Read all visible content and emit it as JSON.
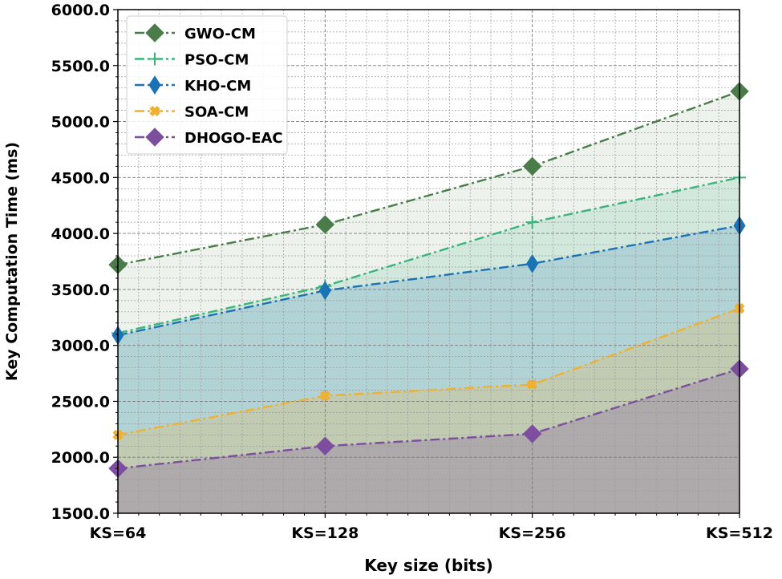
{
  "chart_data": {
    "type": "line",
    "title": "",
    "xlabel": "Key size (bits)",
    "ylabel": "Key Computation Time (ms)",
    "categories": [
      "KS=64",
      "KS=128",
      "KS=256",
      "KS=512"
    ],
    "ylim": [
      1500,
      6000
    ],
    "yticks": [
      "1500.0",
      "2000.0",
      "2500.0",
      "3000.0",
      "3500.0",
      "4000.0",
      "4500.0",
      "5000.0",
      "5500.0",
      "6000.0"
    ],
    "grid": true,
    "legend_position": "top-left",
    "series": [
      {
        "name": "GWO-CM",
        "values": [
          3720,
          4080,
          4600,
          5270
        ],
        "color": "#4a7c4a",
        "marker": "diamond-large"
      },
      {
        "name": "PSO-CM",
        "values": [
          3110,
          3530,
          4100,
          4500
        ],
        "color": "#3cb37a",
        "marker": "plus"
      },
      {
        "name": "KHO-CM",
        "values": [
          3090,
          3490,
          3730,
          4070
        ],
        "color": "#1a73b5",
        "marker": "thin-diamond"
      },
      {
        "name": "SOA-CM",
        "values": [
          2200,
          2550,
          2650,
          3330
        ],
        "color": "#f0b030",
        "marker": "x-filled"
      },
      {
        "name": "DHOGO-EAC",
        "values": [
          1900,
          2100,
          2210,
          2790
        ],
        "color": "#7d4e9e",
        "marker": "diamond-large"
      }
    ]
  }
}
